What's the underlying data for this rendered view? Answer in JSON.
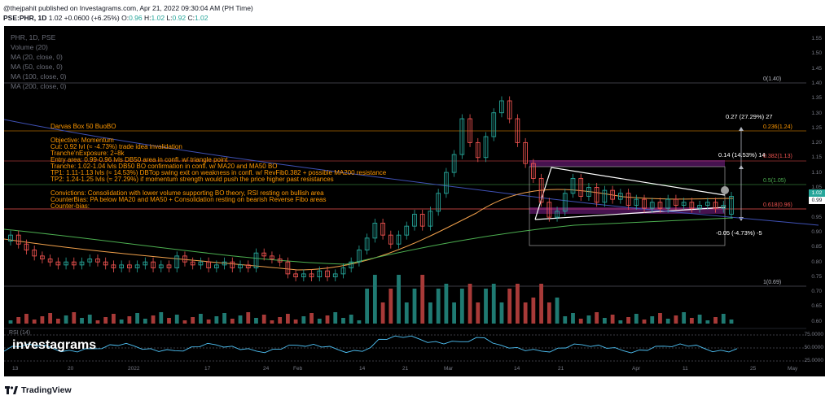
{
  "header": {
    "published": "@thejpahit published on Investagrams.com, Apr 21, 2022 09:30:04 AM (PH Time)",
    "symbol": "PSE:PHR, 1D",
    "last": "1.02",
    "change": "+0.0600 (+6.25%)",
    "ohlc_o_label": "O:",
    "ohlc_o": "0.96",
    "ohlc_h_label": "H:",
    "ohlc_h": "1.02",
    "ohlc_l_label": "L:",
    "ohlc_l": "0.92",
    "ohlc_c_label": "C:",
    "ohlc_c": "1.02"
  },
  "legend": [
    "PHR, 1D, PSE",
    "Volume (20)",
    "MA (20, close, 0)",
    "MA (50, close, 0)",
    "MA (100, close, 0)",
    "MA (200, close, 0)"
  ],
  "notes": [
    "Darvas Box 50 BuoBO",
    "Objective: Momentum",
    "Cut: 0.92 lvl (≈ -4.73%) trade idea invalidation",
    "Tranche'nExposure: 2÷8k",
    "Entry area: 0.99-0.96 lvls DB50 area in confl. w/ triangle point",
    "Tranche: 1.02-1.04 lvls DB50 BO confirmation in confl. w/ MA20 and MA50 BO",
    "TP1: 1.11-1.13 lvls (≈ 14.53%) DBTop swing exit on weakness in confl. w/ RevFib0.382 + possible MA200 resistance",
    "TP2: 1.24-1.25 lvls (≈ 27.29%) if momentum strength would push the price higher past resistances",
    "Convictions: Consolidation with lower volume supporting BO theory, RSI resting on bullish area",
    "CounterBias: PA below MA20 and MA50 + Consolidation resting on bearish Reverse Fibo areas",
    "Counter-bias:"
  ],
  "fib": {
    "f0": "0(1.40)",
    "f236": "0.236(1.24)",
    "f382": "0.382(1.13)",
    "f5": "0.5(1.05)",
    "f618": "0.618(0.96)",
    "f1": "1(0.69)"
  },
  "targets": {
    "tp2": "0.27 (27.29%) 27",
    "tp1": "0.14 (14.53%) 14",
    "cut": "-0.05 (-4.73%) -5"
  },
  "price_scale": [
    "1.55",
    "1.50",
    "1.45",
    "1.40",
    "1.35",
    "1.30",
    "1.25",
    "1.20",
    "1.15",
    "1.10",
    "1.05",
    "1.00",
    "0.95",
    "0.90",
    "0.85",
    "0.80",
    "0.75",
    "0.70",
    "0.65",
    "0.60"
  ],
  "price_badges": {
    "last": "1.02",
    "prev": "0.99"
  },
  "time_scale": [
    "13",
    "20",
    "2022",
    "17",
    "24",
    "Feb",
    "14",
    "21",
    "Mar",
    "14",
    "21",
    "Apr",
    "11",
    "25",
    "May"
  ],
  "rsi": {
    "label": "RSI (14)",
    "levels": [
      "75.0000",
      "50.0000",
      "25.0000"
    ]
  },
  "watermark": "investagrams",
  "footer": {
    "brand": "TradingView"
  },
  "colors": {
    "up": "#26a69a",
    "down": "#ef5350",
    "ma20": "#f0a04b",
    "ma200": "#3f51b5",
    "note": "#ff9800",
    "box": "#9c27b0"
  }
}
